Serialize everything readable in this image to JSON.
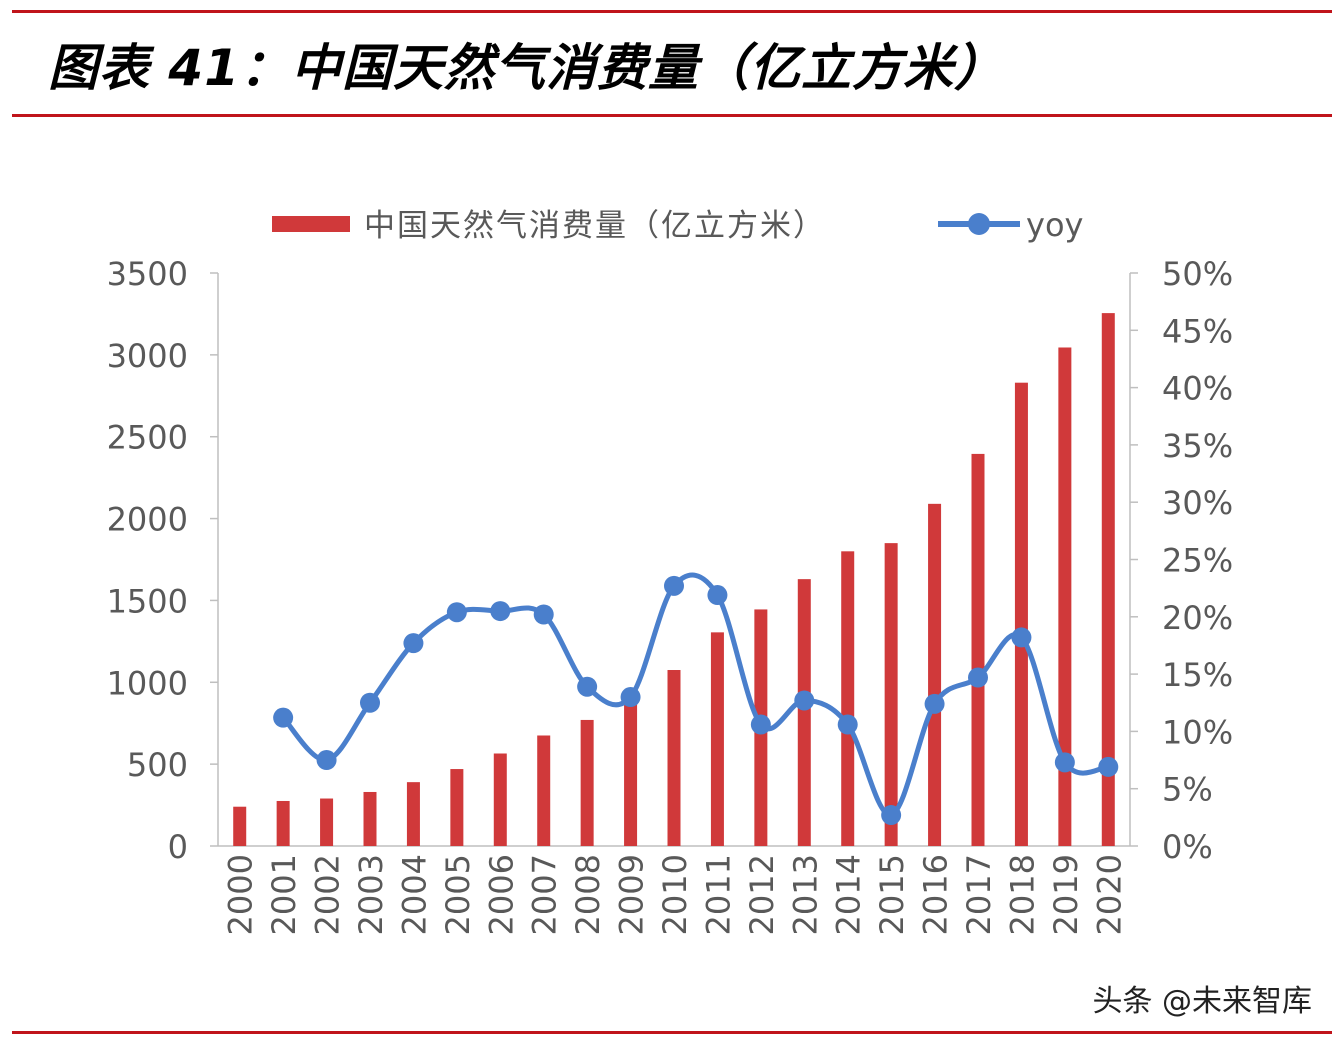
{
  "header": {
    "title": "图表 41：中国天然气消费量（亿立方米）"
  },
  "watermark": "头条 @未来智库",
  "colors": {
    "bar": "#d0393a",
    "line": "#4a7fcc",
    "rule": "#c0141b"
  },
  "chart_data": {
    "type": "bar",
    "title": "",
    "xlabel": "",
    "ylabel": "",
    "categories": [
      "2000",
      "2001",
      "2002",
      "2003",
      "2004",
      "2005",
      "2006",
      "2007",
      "2008",
      "2009",
      "2010",
      "2011",
      "2012",
      "2013",
      "2014",
      "2015",
      "2016",
      "2017",
      "2018",
      "2019",
      "2020"
    ],
    "series": [
      {
        "name": "中国天然气消费量（亿立方米）",
        "type": "bar",
        "axis": "left",
        "values": [
          240,
          275,
          290,
          330,
          390,
          470,
          565,
          675,
          770,
          890,
          1075,
          1305,
          1445,
          1630,
          1800,
          1850,
          2090,
          2395,
          2830,
          3045,
          3255
        ]
      },
      {
        "name": "yoy",
        "type": "line",
        "axis": "right",
        "values": [
          null,
          11.2,
          7.5,
          12.5,
          17.7,
          20.4,
          20.5,
          20.2,
          13.9,
          13.0,
          22.7,
          21.9,
          10.6,
          12.7,
          10.6,
          2.7,
          12.4,
          14.7,
          18.2,
          7.3,
          6.9
        ]
      }
    ],
    "y_left": {
      "ylim": [
        0,
        3500
      ],
      "ticks": [
        "0",
        "500",
        "1000",
        "1500",
        "2000",
        "2500",
        "3000",
        "3500"
      ]
    },
    "y_right": {
      "ylim": [
        0,
        50
      ],
      "ticks": [
        "0%",
        "5%",
        "10%",
        "15%",
        "20%",
        "25%",
        "30%",
        "35%",
        "40%",
        "45%",
        "50%"
      ]
    },
    "legend": {
      "position": "top",
      "entries": [
        "中国天然气消费量（亿立方米）",
        "yoy"
      ]
    },
    "grid": false
  }
}
